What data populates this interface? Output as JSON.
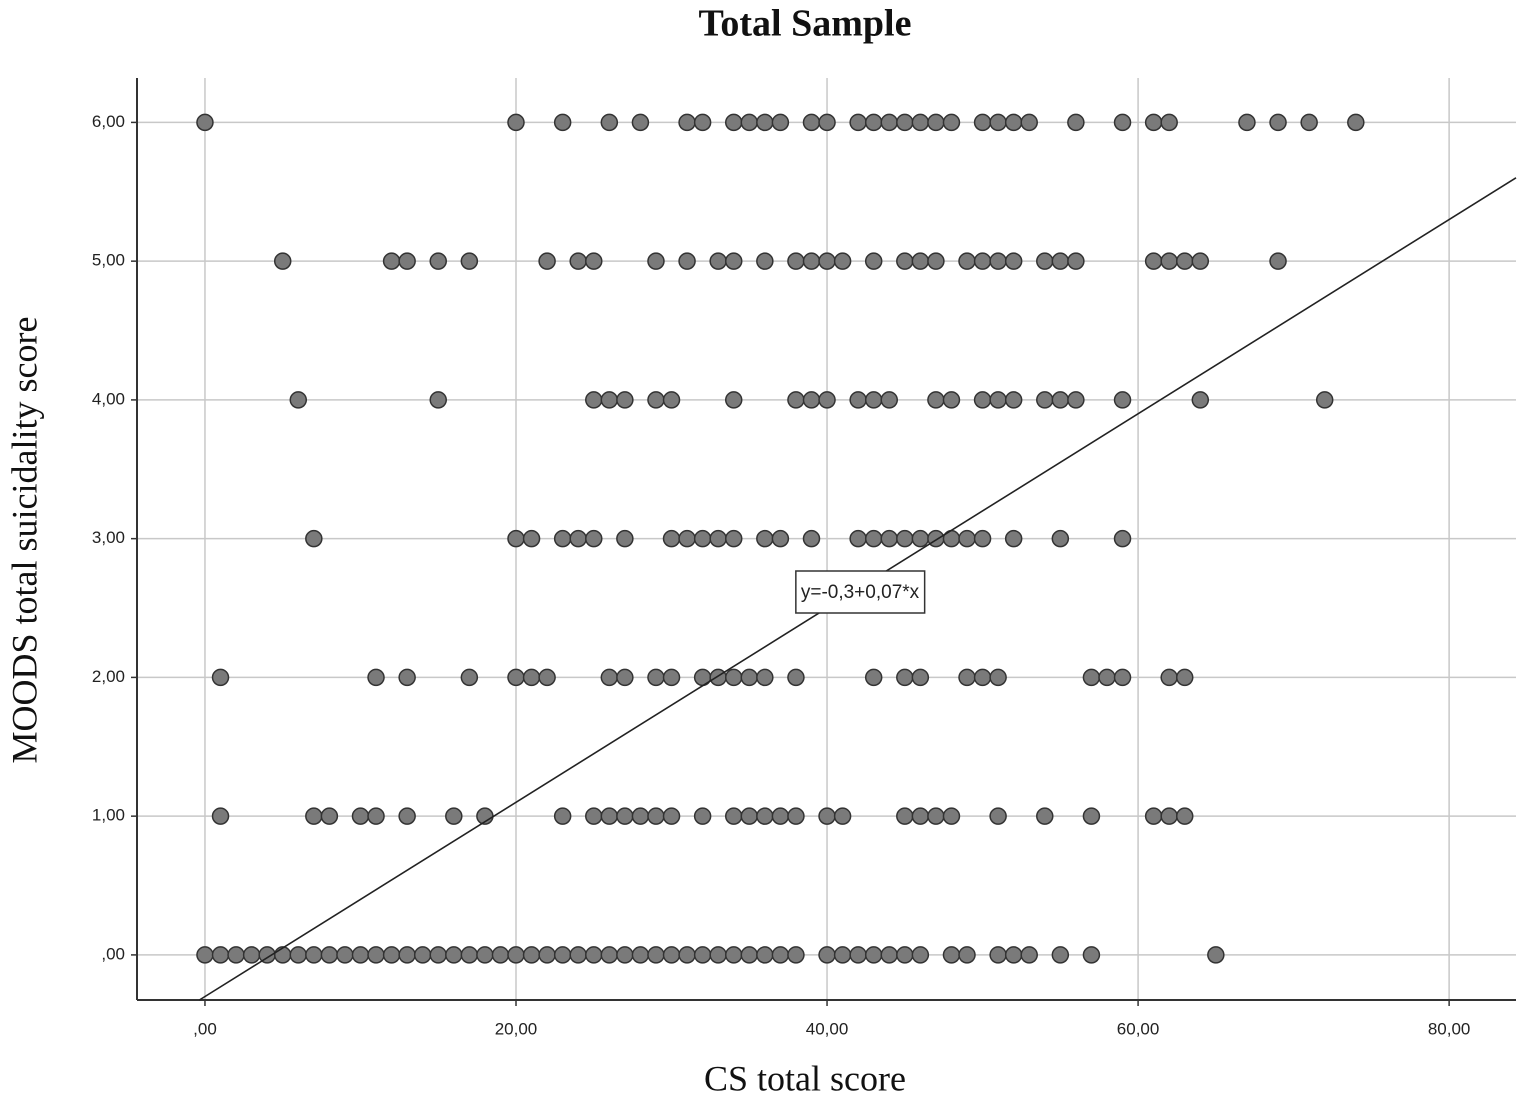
{
  "chart_data": {
    "type": "scatter",
    "title": "Total Sample",
    "x_label": "CS total score",
    "y_label": "MOODS total suicidality score",
    "color": "#7a7a7a",
    "xlim": [
      -4.37,
      84.3
    ],
    "ylim": [
      -0.325,
      6.32
    ],
    "xticks": [
      {
        "value": 0,
        "label": ",00"
      },
      {
        "value": 20,
        "label": "20,00"
      },
      {
        "value": 40,
        "label": "40,00"
      },
      {
        "value": 60,
        "label": "60,00"
      },
      {
        "value": 80,
        "label": "80,00"
      }
    ],
    "yticks": [
      {
        "value": 0,
        "label": ",00"
      },
      {
        "value": 1,
        "label": "1,00"
      },
      {
        "value": 2,
        "label": "2,00"
      },
      {
        "value": 3,
        "label": "3,00"
      },
      {
        "value": 4,
        "label": "4,00"
      },
      {
        "value": 5,
        "label": "5,00"
      },
      {
        "value": 6,
        "label": "6,00"
      }
    ],
    "grid": true,
    "fit": {
      "intercept": -0.3,
      "slope": 0.07,
      "label": "y=-0,3+0,07*x"
    },
    "series": [
      {
        "x": [
          0,
          20,
          23,
          26,
          28,
          31,
          32,
          34,
          35,
          36,
          37,
          39,
          40,
          42,
          43,
          44,
          45,
          46,
          47,
          48,
          50,
          51,
          52,
          53,
          56,
          59,
          61,
          62,
          67,
          69,
          71,
          74
        ],
        "values": [
          6,
          6,
          6,
          6,
          6,
          6,
          6,
          6,
          6,
          6,
          6,
          6,
          6,
          6,
          6,
          6,
          6,
          6,
          6,
          6,
          6,
          6,
          6,
          6,
          6,
          6,
          6,
          6,
          6,
          6,
          6,
          6
        ]
      },
      {
        "x": [
          5,
          12,
          13,
          15,
          17,
          22,
          24,
          25,
          29,
          31,
          33,
          34,
          36,
          38,
          39,
          40,
          41,
          43,
          45,
          46,
          47,
          49,
          50,
          51,
          52,
          54,
          55,
          56,
          61,
          62,
          63,
          64,
          69
        ],
        "values": [
          5,
          5,
          5,
          5,
          5,
          5,
          5,
          5,
          5,
          5,
          5,
          5,
          5,
          5,
          5,
          5,
          5,
          5,
          5,
          5,
          5,
          5,
          5,
          5,
          5,
          5,
          5,
          5,
          5,
          5,
          5,
          5,
          5
        ]
      },
      {
        "x": [
          6,
          15,
          25,
          26,
          27,
          29,
          30,
          34,
          38,
          39,
          40,
          42,
          43,
          44,
          47,
          48,
          50,
          51,
          52,
          54,
          55,
          56,
          59,
          64,
          72
        ],
        "values": [
          4,
          4,
          4,
          4,
          4,
          4,
          4,
          4,
          4,
          4,
          4,
          4,
          4,
          4,
          4,
          4,
          4,
          4,
          4,
          4,
          4,
          4,
          4,
          4,
          4
        ]
      },
      {
        "x": [
          7,
          20,
          21,
          23,
          24,
          25,
          27,
          30,
          31,
          32,
          33,
          34,
          36,
          37,
          39,
          42,
          43,
          44,
          45,
          46,
          47,
          48,
          49,
          50,
          52,
          55,
          59
        ],
        "values": [
          3,
          3,
          3,
          3,
          3,
          3,
          3,
          3,
          3,
          3,
          3,
          3,
          3,
          3,
          3,
          3,
          3,
          3,
          3,
          3,
          3,
          3,
          3,
          3,
          3,
          3,
          3
        ]
      },
      {
        "x": [
          1,
          11,
          13,
          17,
          20,
          21,
          22,
          26,
          27,
          29,
          30,
          32,
          33,
          34,
          35,
          36,
          38,
          43,
          45,
          46,
          49,
          50,
          51,
          57,
          58,
          59,
          62,
          63
        ],
        "values": [
          2,
          2,
          2,
          2,
          2,
          2,
          2,
          2,
          2,
          2,
          2,
          2,
          2,
          2,
          2,
          2,
          2,
          2,
          2,
          2,
          2,
          2,
          2,
          2,
          2,
          2,
          2,
          2
        ]
      },
      {
        "x": [
          1,
          7,
          8,
          10,
          11,
          13,
          16,
          18,
          23,
          25,
          26,
          27,
          28,
          29,
          30,
          32,
          34,
          35,
          36,
          37,
          38,
          40,
          41,
          45,
          46,
          47,
          48,
          51,
          54,
          57,
          61,
          62,
          63
        ],
        "values": [
          1,
          1,
          1,
          1,
          1,
          1,
          1,
          1,
          1,
          1,
          1,
          1,
          1,
          1,
          1,
          1,
          1,
          1,
          1,
          1,
          1,
          1,
          1,
          1,
          1,
          1,
          1,
          1,
          1,
          1,
          1,
          1,
          1
        ]
      },
      {
        "x": [
          0,
          1,
          2,
          3,
          4,
          5,
          6,
          7,
          8,
          9,
          10,
          11,
          12,
          13,
          14,
          15,
          16,
          17,
          18,
          19,
          20,
          21,
          22,
          23,
          24,
          25,
          26,
          27,
          28,
          29,
          30,
          31,
          32,
          33,
          34,
          35,
          36,
          37,
          38,
          40,
          41,
          42,
          43,
          44,
          45,
          46,
          48,
          49,
          51,
          52,
          53,
          55,
          57,
          65
        ],
        "values": [
          0,
          0,
          0,
          0,
          0,
          0,
          0,
          0,
          0,
          0,
          0,
          0,
          0,
          0,
          0,
          0,
          0,
          0,
          0,
          0,
          0,
          0,
          0,
          0,
          0,
          0,
          0,
          0,
          0,
          0,
          0,
          0,
          0,
          0,
          0,
          0,
          0,
          0,
          0,
          0,
          0,
          0,
          0,
          0,
          0,
          0,
          0,
          0,
          0,
          0,
          0,
          0,
          0,
          0
        ]
      }
    ]
  }
}
